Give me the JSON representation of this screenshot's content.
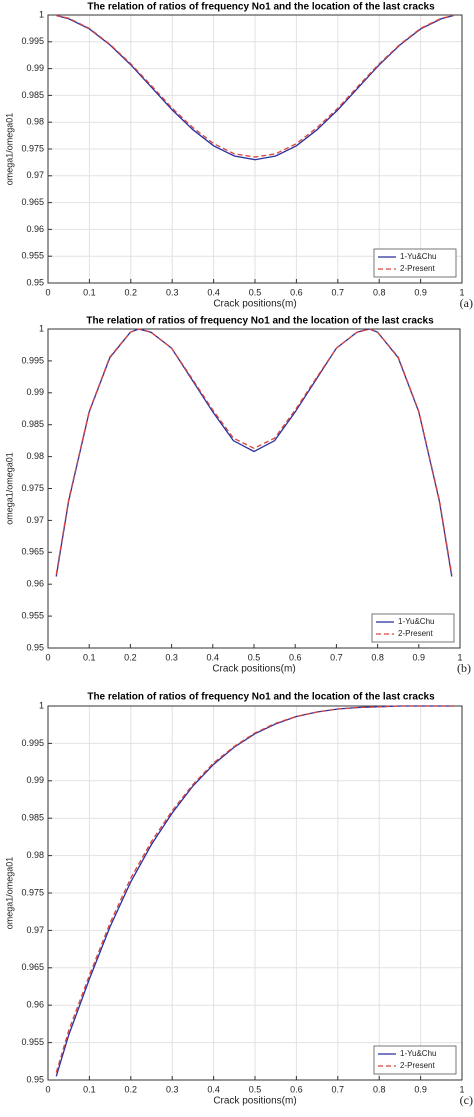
{
  "chart_data": [
    {
      "type": "line",
      "title": "The relation of ratios of frequency No1 and the location of the last cracks",
      "xlabel": "Crack positions(m)",
      "ylabel": "omega1/omega01",
      "label": "(a)",
      "x": [
        0.02,
        0.05,
        0.1,
        0.15,
        0.2,
        0.25,
        0.3,
        0.35,
        0.4,
        0.45,
        0.5,
        0.55,
        0.6,
        0.65,
        0.7,
        0.75,
        0.8,
        0.85,
        0.9,
        0.95,
        0.98
      ],
      "series": [
        {
          "name": "1-Yu&Chu",
          "color": "#2a2f9e",
          "style": "solid",
          "values": [
            0.9999,
            0.9993,
            0.9974,
            0.9944,
            0.9907,
            0.9865,
            0.9823,
            0.9786,
            0.9756,
            0.9737,
            0.973,
            0.9737,
            0.9756,
            0.9786,
            0.9823,
            0.9865,
            0.9907,
            0.9944,
            0.9974,
            0.9993,
            0.9999
          ]
        },
        {
          "name": "2-Present",
          "color": "#d9433c",
          "style": "dashed",
          "values": [
            0.9999,
            0.9994,
            0.9975,
            0.9945,
            0.9909,
            0.9868,
            0.9826,
            0.979,
            0.976,
            0.9741,
            0.9735,
            0.9741,
            0.976,
            0.979,
            0.9826,
            0.9868,
            0.9909,
            0.9945,
            0.9975,
            0.9994,
            0.9999
          ]
        }
      ],
      "xlim": [
        0,
        1
      ],
      "xticks": [
        0,
        0.1,
        0.2,
        0.3,
        0.4,
        0.5,
        0.6,
        0.7,
        0.8,
        0.9,
        1
      ],
      "ylim": [
        0.95,
        1
      ],
      "yticks": [
        0.95,
        0.955,
        0.96,
        0.965,
        0.97,
        0.975,
        0.98,
        0.985,
        0.99,
        0.995,
        1
      ],
      "grid": true,
      "legend": "lower right"
    },
    {
      "type": "line",
      "title": "The relation of ratios of frequency No1 and the location of the last cracks",
      "xlabel": "Crack positions(m)",
      "ylabel": "omega1/omega01",
      "label": "(b)",
      "x": [
        0.02,
        0.05,
        0.1,
        0.15,
        0.2,
        0.22,
        0.25,
        0.3,
        0.35,
        0.4,
        0.45,
        0.5,
        0.55,
        0.6,
        0.65,
        0.7,
        0.75,
        0.78,
        0.8,
        0.85,
        0.9,
        0.95,
        0.98
      ],
      "series": [
        {
          "name": "1-Yu&Chu",
          "color": "#2a2f9e",
          "style": "solid",
          "values": [
            0.9612,
            0.973,
            0.987,
            0.9955,
            0.9995,
            1,
            0.9995,
            0.997,
            0.992,
            0.987,
            0.9825,
            0.9808,
            0.9825,
            0.987,
            0.992,
            0.997,
            0.9995,
            1,
            0.9995,
            0.9955,
            0.987,
            0.973,
            0.9612
          ]
        },
        {
          "name": "2-Present",
          "color": "#d9433c",
          "style": "dashed",
          "values": [
            0.9615,
            0.9732,
            0.9871,
            0.9956,
            0.9995,
            1,
            0.9995,
            0.997,
            0.9922,
            0.9873,
            0.9829,
            0.9813,
            0.9829,
            0.9873,
            0.9922,
            0.997,
            0.9995,
            1,
            0.9995,
            0.9956,
            0.9871,
            0.9732,
            0.9615
          ]
        }
      ],
      "xlim": [
        0,
        1
      ],
      "xticks": [
        0,
        0.1,
        0.2,
        0.3,
        0.4,
        0.5,
        0.6,
        0.7,
        0.8,
        0.9,
        1
      ],
      "ylim": [
        0.95,
        1
      ],
      "yticks": [
        0.95,
        0.955,
        0.96,
        0.965,
        0.97,
        0.975,
        0.98,
        0.985,
        0.99,
        0.995,
        1
      ],
      "grid": false,
      "legend": "lower right"
    },
    {
      "type": "line",
      "title": "The relation of ratios of frequency No1 and the location of the last cracks",
      "xlabel": "Crack positions(m)",
      "ylabel": "omega1/omega01",
      "label": "(c)",
      "x": [
        0.02,
        0.05,
        0.1,
        0.15,
        0.2,
        0.25,
        0.3,
        0.35,
        0.4,
        0.45,
        0.5,
        0.55,
        0.6,
        0.65,
        0.7,
        0.75,
        0.8,
        0.85,
        0.9,
        0.95,
        0.98
      ],
      "series": [
        {
          "name": "1-Yu&Chu",
          "color": "#2a2f9e",
          "style": "solid",
          "values": [
            0.9505,
            0.956,
            0.9635,
            0.9705,
            0.9765,
            0.9815,
            0.9857,
            0.9893,
            0.9922,
            0.9945,
            0.9963,
            0.9976,
            0.9986,
            0.9992,
            0.9996,
            0.9998,
            0.9999,
            1,
            1,
            1,
            1
          ]
        },
        {
          "name": "2-Present",
          "color": "#d9433c",
          "style": "dashed",
          "values": [
            0.951,
            0.9566,
            0.964,
            0.971,
            0.977,
            0.9819,
            0.986,
            0.9895,
            0.9924,
            0.9946,
            0.9964,
            0.9977,
            0.9986,
            0.9992,
            0.9996,
            0.9998,
            0.9999,
            1,
            1,
            1,
            1
          ]
        }
      ],
      "xlim": [
        0,
        1
      ],
      "xticks": [
        0,
        0.1,
        0.2,
        0.3,
        0.4,
        0.5,
        0.6,
        0.7,
        0.8,
        0.9,
        1
      ],
      "ylim": [
        0.95,
        1
      ],
      "yticks": [
        0.95,
        0.955,
        0.96,
        0.965,
        0.97,
        0.975,
        0.98,
        0.985,
        0.99,
        0.995,
        1
      ],
      "grid": true,
      "legend": "lower right"
    }
  ]
}
